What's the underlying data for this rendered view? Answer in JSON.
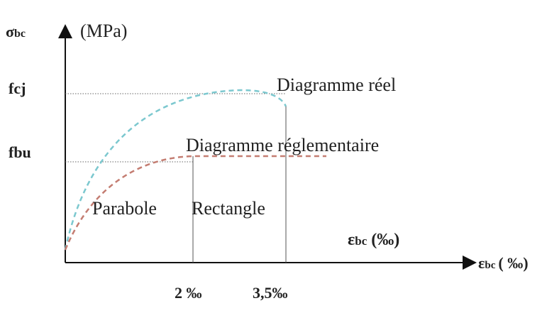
{
  "diagram": {
    "y_axis": {
      "symbol": "σ",
      "sub": "bc",
      "unit": "(MPa)"
    },
    "levels": {
      "fcj": "fcj",
      "fbu": "fbu"
    },
    "curves": {
      "real": "Diagramme réel",
      "regulatory": "Diagramme réglementaire"
    },
    "zones": {
      "parabola": "Parabole",
      "rectangle": "Rectangle"
    },
    "x_axis_inner": {
      "symbol": "ε",
      "sub": "bc",
      "unit": "(‰)"
    },
    "x_axis": {
      "symbol": "ε",
      "sub": "bc",
      "unit": "( ‰)"
    },
    "strains": {
      "first": "2 ‰",
      "second": "3,5‰"
    }
  }
}
